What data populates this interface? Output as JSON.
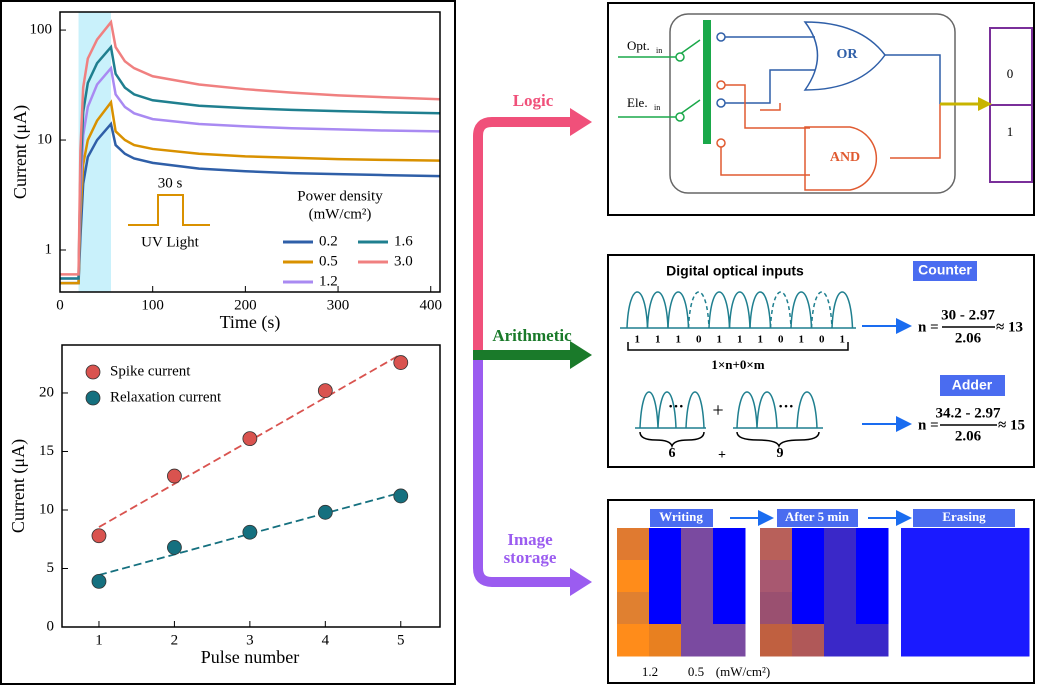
{
  "chart_data": [
    {
      "type": "line",
      "log_y": true,
      "xlabel": "Time (s)",
      "ylabel": "Current (μA)",
      "xlim": [
        0,
        410
      ],
      "ylim": [
        0.415,
        146
      ],
      "xticks": [
        0,
        100,
        200,
        300,
        400
      ],
      "yticks": [
        1,
        10,
        100
      ],
      "shaded_x": [
        20,
        55
      ],
      "shade_color": "#c9f1fb",
      "legend_title": [
        "Power density",
        "(mW/cm²)"
      ],
      "annotations": [
        "30 s",
        "UV Light"
      ],
      "x": [
        0,
        10,
        20,
        22,
        25,
        30,
        40,
        55,
        60,
        70,
        80,
        100,
        150,
        200,
        250,
        300,
        350,
        410
      ],
      "series": [
        {
          "name": "0.2",
          "color": "#2f5fa8",
          "values": [
            0.5,
            0.5,
            0.5,
            1.3,
            4,
            7,
            10,
            14,
            9,
            7.5,
            6.8,
            6.2,
            5.5,
            5.2,
            5,
            4.9,
            4.8,
            4.7
          ]
        },
        {
          "name": "0.5",
          "color": "#d99100",
          "values": [
            0.5,
            0.5,
            0.5,
            2,
            6,
            10,
            15,
            22,
            12,
            10,
            9,
            8.3,
            7.5,
            7.1,
            6.9,
            6.7,
            6.6,
            6.5
          ]
        },
        {
          "name": "1.2",
          "color": "#a98af2",
          "values": [
            0.55,
            0.55,
            0.55,
            3,
            11,
            20,
            32,
            45,
            26,
            20,
            17.5,
            15.5,
            14,
            13.3,
            12.8,
            12.5,
            12.2,
            12
          ]
        },
        {
          "name": "1.6",
          "color": "#1f7f8f",
          "values": [
            0.55,
            0.55,
            0.55,
            5,
            18,
            33,
            50,
            70,
            40,
            30,
            26,
            23,
            20.5,
            19.5,
            18.8,
            18.3,
            17.9,
            17.5
          ]
        },
        {
          "name": "3.0",
          "color": "#f08080",
          "values": [
            0.6,
            0.6,
            0.6,
            8,
            30,
            55,
            82,
            118,
            70,
            52,
            45,
            38,
            32,
            29,
            27,
            25.5,
            24.5,
            23.5
          ]
        }
      ]
    },
    {
      "type": "scatter",
      "fit": "linear",
      "xlabel": "Pulse number",
      "ylabel": "Current (μA)",
      "xlim": [
        0.51,
        5.52
      ],
      "ylim": [
        0,
        24.1
      ],
      "xticks": [
        1,
        2,
        3,
        4,
        5
      ],
      "yticks": [
        0,
        5,
        10,
        15,
        20
      ],
      "x": [
        1,
        2,
        3,
        4,
        5
      ],
      "series": [
        {
          "name": "Spike current",
          "color": "#d9534f",
          "values": [
            7.8,
            12.9,
            16.1,
            20.2,
            22.6
          ]
        },
        {
          "name": "Relaxation current",
          "color": "#15707f",
          "values": [
            3.9,
            6.8,
            8.1,
            9.8,
            11.2
          ]
        }
      ]
    }
  ],
  "flow": {
    "logic": "Logic",
    "arithmetic": "Arithmetic",
    "image": [
      "Image",
      "storage"
    ]
  },
  "logic": {
    "opt": "Opt.",
    "ele": "Ele.",
    "sub": "in",
    "or": "OR",
    "and": "AND",
    "outputs": [
      "0",
      "1"
    ]
  },
  "arithmetic": {
    "title": "Digital optical inputs",
    "bits": [
      1,
      1,
      1,
      0,
      1,
      1,
      1,
      0,
      1,
      0,
      1
    ],
    "expr": "1×n+0×m",
    "counter": {
      "label": "Counter",
      "lhs": "n =",
      "num": "30 - 2.97",
      "den": "2.06",
      "result": "≈ 13"
    },
    "adder": {
      "label": "Adder",
      "a": "6",
      "plus": "+",
      "b": "9",
      "dots": "···",
      "lhs": "n =",
      "num": "34.2 - 2.97",
      "den": "2.06",
      "result": "≈ 15"
    }
  },
  "storage": {
    "stages": [
      "Writing",
      "After 5 min",
      "Erasing"
    ],
    "legend": [
      "1.2",
      "0.5",
      "(mW/cm²)"
    ]
  }
}
